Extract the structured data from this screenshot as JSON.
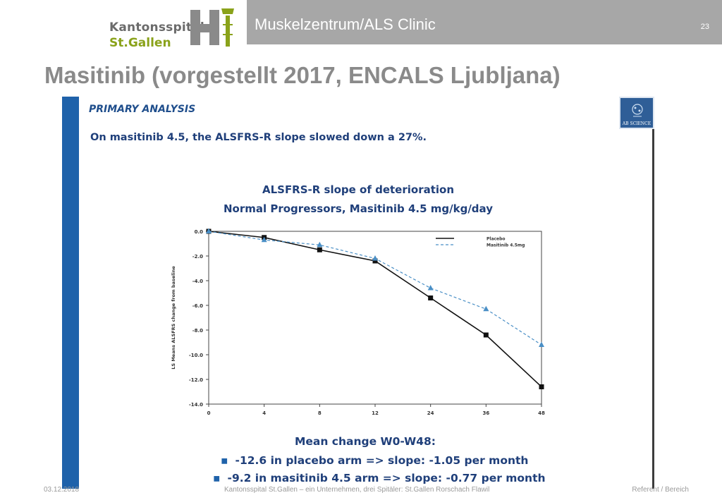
{
  "header": {
    "logo_line1": "Kantonsspital",
    "logo_line2": "St.Gallen",
    "title": "Muskelzentrum/ALS Clinic",
    "page_number": "23",
    "colors": {
      "bar": "#a7a7a7",
      "logo_green": "#8aa21a"
    }
  },
  "slide": {
    "title": "Masitinib (vorgestellt 2017, ENCALS Ljubljana)"
  },
  "embedded": {
    "primary_label": "PRIMARY ANALYSIS",
    "subline": "On masitinib 4.5, the ALSFRS-R slope slowed down a 27%.",
    "chart_title_1": "ALSFRS-R slope of deterioration",
    "chart_title_2": "Normal Progressors, Masitinib 4.5 mg/kg/day",
    "logo_text": "AB SCIENCE",
    "mean_title": "Mean change W0-W48:",
    "bullet_1": "-12.6 in placebo arm =>  slope: -1.05 per month",
    "bullet_2": "-9.2 in masitinib 4.5 arm => slope: -0.77 per month",
    "bullet_glyph": "▪",
    "colors": {
      "accent_bar": "#1f62aa",
      "text": "#1f3f7a"
    }
  },
  "chart_data": {
    "type": "line",
    "x": [
      0,
      4,
      8,
      12,
      24,
      36,
      48
    ],
    "x_tick_labels": [
      "0",
      "4",
      "8",
      "12",
      "24",
      "36",
      "48"
    ],
    "ylabel": "LS Means ALSFRS change from baseline",
    "y_tick_labels": [
      "0.0",
      "-2.0",
      "-4.0",
      "-6.0",
      "-8.0",
      "-10.0",
      "-12.0",
      "-14.0"
    ],
    "ylim": [
      -14,
      0
    ],
    "grid": false,
    "legend_position": "top-right",
    "series": [
      {
        "name": "Placebo",
        "values": [
          0.0,
          -0.5,
          -1.5,
          -2.4,
          -5.4,
          -8.4,
          -12.6
        ],
        "color": "#111111",
        "marker": "square",
        "dash": "solid"
      },
      {
        "name": "Masitinib 4.5mg",
        "values": [
          0.0,
          -0.7,
          -1.1,
          -2.2,
          -4.6,
          -6.3,
          -9.2
        ],
        "color": "#4a8fc6",
        "marker": "triangle",
        "dash": "dashed"
      }
    ]
  },
  "footer": {
    "date": "03.12.2018",
    "center": "Kantonsspital St.Gallen – ein Unternehmen, drei Spitäler: St.Gallen Rorschach Flawil",
    "right": "Referent / Bereich"
  }
}
